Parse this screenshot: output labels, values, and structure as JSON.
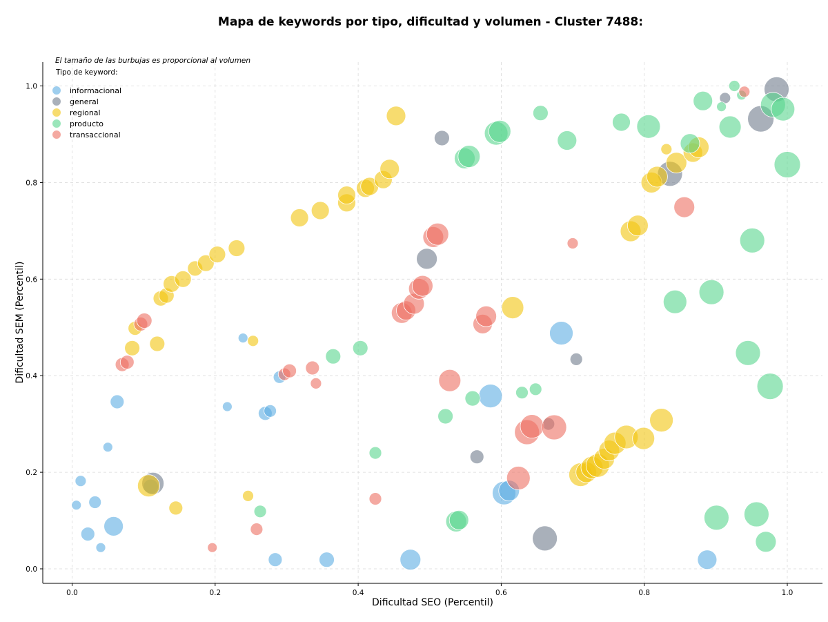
{
  "chart_data": {
    "type": "scatter",
    "title": "Mapa de keywords por tipo, dificultad y volumen - Cluster 7488:",
    "xlabel": "Dificultad SEO (Percentil)",
    "ylabel": "Dificultad SEM (Percentil)",
    "xlim": [
      -0.043,
      1.05
    ],
    "ylim": [
      -0.03,
      1.05
    ],
    "x_ticks": [
      "0.0",
      "0.2",
      "0.4",
      "0.6",
      "0.8",
      "1.0"
    ],
    "y_ticks": [
      "0.0",
      "0.2",
      "0.4",
      "0.6",
      "0.8",
      "1.0"
    ],
    "grid": true,
    "note": "El tamaño de las burbujas es proporcional al volumen",
    "legend_title": "Tipo de keyword:",
    "legend_position": "top-left",
    "series": [
      {
        "name": "informacional",
        "color": "#5DADE2",
        "points": [
          [
            0.012,
            0.182,
            8
          ],
          [
            0.006,
            0.132,
            7
          ],
          [
            0.032,
            0.138,
            9
          ],
          [
            0.022,
            0.072,
            10
          ],
          [
            0.04,
            0.044,
            7
          ],
          [
            0.058,
            0.088,
            14
          ],
          [
            0.05,
            0.252,
            7
          ],
          [
            0.063,
            0.346,
            10
          ],
          [
            0.11,
            0.17,
            11
          ],
          [
            0.217,
            0.336,
            7
          ],
          [
            0.239,
            0.478,
            7
          ],
          [
            0.27,
            0.322,
            10
          ],
          [
            0.277,
            0.327,
            9
          ],
          [
            0.29,
            0.397,
            9
          ],
          [
            0.284,
            0.019,
            10
          ],
          [
            0.356,
            0.019,
            11
          ],
          [
            0.473,
            0.019,
            15
          ],
          [
            0.585,
            0.358,
            17
          ],
          [
            0.604,
            0.157,
            17
          ],
          [
            0.611,
            0.162,
            15
          ],
          [
            0.684,
            0.488,
            17
          ],
          [
            0.888,
            0.019,
            14
          ]
        ]
      },
      {
        "name": "general",
        "color": "#707B8C",
        "points": [
          [
            0.113,
            0.177,
            16
          ],
          [
            0.496,
            0.642,
            15
          ],
          [
            0.517,
            0.892,
            11
          ],
          [
            0.566,
            0.232,
            10
          ],
          [
            0.661,
            0.063,
            18
          ],
          [
            0.666,
            0.3,
            9
          ],
          [
            0.705,
            0.434,
            9
          ],
          [
            0.836,
            0.818,
            18
          ],
          [
            0.913,
            0.975,
            8
          ],
          [
            0.963,
            0.932,
            19
          ],
          [
            0.985,
            0.993,
            18
          ]
        ]
      },
      {
        "name": "regional",
        "color": "#F1C40F",
        "points": [
          [
            0.084,
            0.457,
            11
          ],
          [
            0.088,
            0.498,
            10
          ],
          [
            0.107,
            0.172,
            16
          ],
          [
            0.119,
            0.466,
            11
          ],
          [
            0.145,
            0.126,
            10
          ],
          [
            0.124,
            0.56,
            11
          ],
          [
            0.132,
            0.566,
            11
          ],
          [
            0.139,
            0.59,
            12
          ],
          [
            0.155,
            0.6,
            12
          ],
          [
            0.172,
            0.622,
            11
          ],
          [
            0.187,
            0.633,
            12
          ],
          [
            0.203,
            0.651,
            12
          ],
          [
            0.23,
            0.664,
            12
          ],
          [
            0.253,
            0.472,
            8
          ],
          [
            0.246,
            0.151,
            8
          ],
          [
            0.318,
            0.727,
            13
          ],
          [
            0.347,
            0.742,
            13
          ],
          [
            0.384,
            0.758,
            13
          ],
          [
            0.384,
            0.774,
            13
          ],
          [
            0.41,
            0.788,
            13
          ],
          [
            0.416,
            0.792,
            13
          ],
          [
            0.435,
            0.806,
            13
          ],
          [
            0.444,
            0.828,
            14
          ],
          [
            0.453,
            0.938,
            14
          ],
          [
            0.616,
            0.541,
            16
          ],
          [
            0.711,
            0.195,
            17
          ],
          [
            0.719,
            0.2,
            15
          ],
          [
            0.727,
            0.21,
            16
          ],
          [
            0.735,
            0.214,
            17
          ],
          [
            0.744,
            0.228,
            15
          ],
          [
            0.751,
            0.245,
            15
          ],
          [
            0.759,
            0.26,
            16
          ],
          [
            0.775,
            0.273,
            17
          ],
          [
            0.799,
            0.27,
            16
          ],
          [
            0.824,
            0.308,
            17
          ],
          [
            0.781,
            0.699,
            15
          ],
          [
            0.791,
            0.711,
            15
          ],
          [
            0.81,
            0.8,
            15
          ],
          [
            0.818,
            0.812,
            15
          ],
          [
            0.831,
            0.869,
            8
          ],
          [
            0.845,
            0.841,
            15
          ],
          [
            0.868,
            0.862,
            14
          ],
          [
            0.876,
            0.873,
            15
          ]
        ]
      },
      {
        "name": "producto",
        "color": "#58D68D",
        "points": [
          [
            0.263,
            0.119,
            9
          ],
          [
            0.365,
            0.44,
            11
          ],
          [
            0.403,
            0.457,
            11
          ],
          [
            0.424,
            0.24,
            9
          ],
          [
            0.522,
            0.316,
            11
          ],
          [
            0.537,
            0.098,
            15
          ],
          [
            0.541,
            0.101,
            14
          ],
          [
            0.549,
            0.85,
            15
          ],
          [
            0.555,
            0.854,
            16
          ],
          [
            0.56,
            0.353,
            11
          ],
          [
            0.593,
            0.902,
            17
          ],
          [
            0.598,
            0.906,
            16
          ],
          [
            0.629,
            0.365,
            9
          ],
          [
            0.648,
            0.372,
            9
          ],
          [
            0.655,
            0.944,
            11
          ],
          [
            0.692,
            0.887,
            14
          ],
          [
            0.768,
            0.925,
            13
          ],
          [
            0.806,
            0.916,
            17
          ],
          [
            0.843,
            0.553,
            17
          ],
          [
            0.864,
            0.881,
            14
          ],
          [
            0.882,
            0.969,
            14
          ],
          [
            0.894,
            0.573,
            18
          ],
          [
            0.901,
            0.106,
            18
          ],
          [
            0.908,
            0.957,
            7
          ],
          [
            0.92,
            0.915,
            16
          ],
          [
            0.926,
            1.0,
            8
          ],
          [
            0.936,
            0.981,
            7
          ],
          [
            0.945,
            0.447,
            18
          ],
          [
            0.951,
            0.68,
            18
          ],
          [
            0.957,
            0.113,
            18
          ],
          [
            0.97,
            0.056,
            15
          ],
          [
            0.976,
            0.378,
            19
          ],
          [
            0.98,
            0.961,
            18
          ],
          [
            0.994,
            0.952,
            17
          ],
          [
            1.0,
            0.837,
            19
          ]
        ]
      },
      {
        "name": "transaccional",
        "color": "#EC7063",
        "points": [
          [
            0.07,
            0.423,
            10
          ],
          [
            0.077,
            0.428,
            10
          ],
          [
            0.096,
            0.507,
            10
          ],
          [
            0.101,
            0.514,
            11
          ],
          [
            0.196,
            0.044,
            7
          ],
          [
            0.258,
            0.082,
            9
          ],
          [
            0.297,
            0.403,
            9
          ],
          [
            0.304,
            0.41,
            10
          ],
          [
            0.336,
            0.416,
            10
          ],
          [
            0.341,
            0.384,
            8
          ],
          [
            0.424,
            0.145,
            9
          ],
          [
            0.461,
            0.53,
            15
          ],
          [
            0.467,
            0.535,
            14
          ],
          [
            0.478,
            0.549,
            15
          ],
          [
            0.485,
            0.58,
            15
          ],
          [
            0.49,
            0.586,
            15
          ],
          [
            0.505,
            0.687,
            15
          ],
          [
            0.511,
            0.693,
            16
          ],
          [
            0.528,
            0.39,
            16
          ],
          [
            0.574,
            0.507,
            14
          ],
          [
            0.579,
            0.523,
            15
          ],
          [
            0.624,
            0.188,
            17
          ],
          [
            0.636,
            0.283,
            18
          ],
          [
            0.643,
            0.295,
            17
          ],
          [
            0.674,
            0.293,
            18
          ],
          [
            0.7,
            0.674,
            8
          ],
          [
            0.856,
            0.749,
            15
          ],
          [
            0.94,
            0.988,
            8
          ]
        ]
      }
    ]
  }
}
